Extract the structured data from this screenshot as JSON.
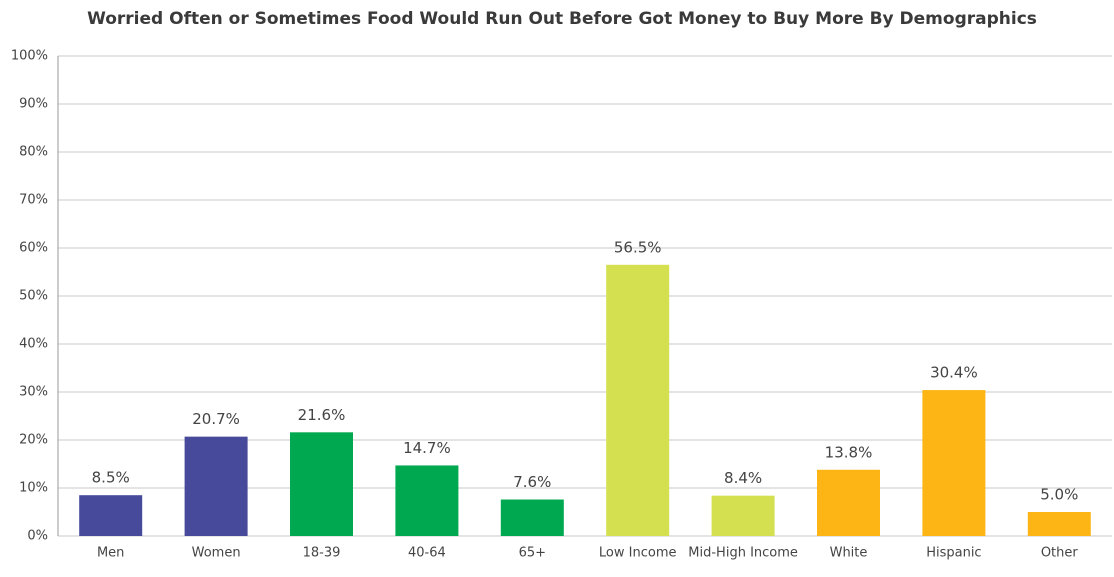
{
  "chart_data": {
    "type": "bar",
    "title": "Worried Often or Sometimes Food Would Run Out Before Got Money to Buy More By Demographics",
    "categories": [
      "Men",
      "Women",
      "18-39",
      "40-64",
      "65+",
      "Low Income",
      "Mid-High Income",
      "White",
      "Hispanic",
      "Other"
    ],
    "values": [
      8.5,
      20.7,
      21.6,
      14.7,
      7.6,
      56.5,
      8.4,
      13.8,
      30.4,
      5.0
    ],
    "value_labels": [
      "8.5%",
      "20.7%",
      "21.6%",
      "14.7%",
      "7.6%",
      "56.5%",
      "8.4%",
      "13.8%",
      "30.4%",
      "5.0%"
    ],
    "colors": [
      "#474a9a",
      "#474a9a",
      "#00a94f",
      "#00a94f",
      "#00a94f",
      "#d4e04f",
      "#d4e04f",
      "#fdb515",
      "#fdb515",
      "#fdb515"
    ],
    "ylim": [
      0,
      100
    ],
    "yticks": [
      {
        "value": 0,
        "label": "0%"
      },
      {
        "value": 10,
        "label": "10%"
      },
      {
        "value": 20,
        "label": "20%"
      },
      {
        "value": 30,
        "label": "30%"
      },
      {
        "value": 40,
        "label": "40%"
      },
      {
        "value": 50,
        "label": "50%"
      },
      {
        "value": 60,
        "label": "60%"
      },
      {
        "value": 70,
        "label": "70%"
      },
      {
        "value": 80,
        "label": "80%"
      },
      {
        "value": 90,
        "label": "90%"
      },
      {
        "value": 100,
        "label": "100%"
      }
    ],
    "grid": true
  }
}
